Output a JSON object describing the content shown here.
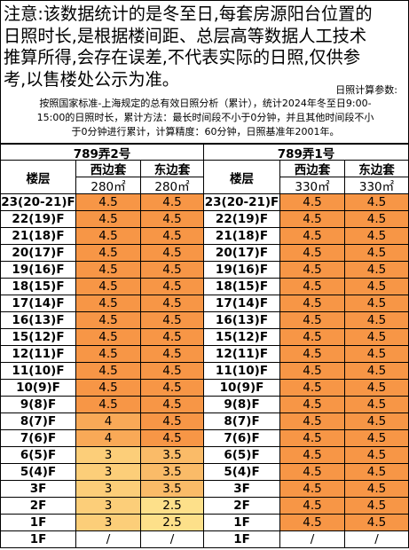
{
  "note": {
    "lines": [
      "注意:该数据统计的是冬至日,每套房源阳台位置的",
      "日照时长,是根据楼间距、总层高等数据人工技术",
      "推算所得,会存在误差,不代表实际的日照,仅供参",
      "考,以售楼处公示为准。"
    ],
    "params_label": "日照计算参数:",
    "params_lines": [
      "按照国家标准-上海规定的总有效日照分析（累计），统计2024年冬至日9:00-",
      "15:00的日照时长，累计方法：最长时间段不小于0分钟，并且其他时间段不小",
      "于0分钟进行累计，计算精度：60分钟，日照基准年2001年。"
    ]
  },
  "color_scale": {
    "low": "#fde08a",
    "high": "#f79646"
  },
  "table": {
    "buildings": [
      {
        "name": "789弄2号",
        "floor_header": "楼层",
        "units": [
          {
            "name": "西边套",
            "area": "280㎡"
          },
          {
            "name": "东边套",
            "area": "280㎡"
          }
        ],
        "rows": [
          {
            "floor": "23(20-21)F",
            "values": [
              4.5,
              4.5
            ]
          },
          {
            "floor": "22(19)F",
            "values": [
              4.5,
              4.5
            ]
          },
          {
            "floor": "21(18)F",
            "values": [
              4.5,
              4.5
            ]
          },
          {
            "floor": "20(17)F",
            "values": [
              4.5,
              4.5
            ]
          },
          {
            "floor": "19(16)F",
            "values": [
              4.5,
              4.5
            ]
          },
          {
            "floor": "18(15)F",
            "values": [
              4.5,
              4.5
            ]
          },
          {
            "floor": "17(14)F",
            "values": [
              4.5,
              4.5
            ]
          },
          {
            "floor": "16(13)F",
            "values": [
              4.5,
              4.5
            ]
          },
          {
            "floor": "15(12)F",
            "values": [
              4.5,
              4.5
            ]
          },
          {
            "floor": "12(11)F",
            "values": [
              4.5,
              4.5
            ]
          },
          {
            "floor": "11(10)F",
            "values": [
              4.5,
              4.5
            ]
          },
          {
            "floor": "10(9)F",
            "values": [
              4.5,
              4.5
            ]
          },
          {
            "floor": "9(8)F",
            "values": [
              4.5,
              4.5
            ]
          },
          {
            "floor": "8(7)F",
            "values": [
              4,
              4.5
            ]
          },
          {
            "floor": "7(6)F",
            "values": [
              4,
              4.5
            ]
          },
          {
            "floor": "6(5)F",
            "values": [
              3,
              3.5
            ]
          },
          {
            "floor": "5(4)F",
            "values": [
              3,
              3.5
            ]
          },
          {
            "floor": "3F",
            "values": [
              3,
              3.5
            ]
          },
          {
            "floor": "2F",
            "values": [
              3,
              2.5
            ]
          },
          {
            "floor": "1F",
            "values": [
              3,
              2.5
            ]
          },
          {
            "floor": "1F",
            "values": [
              "/",
              "/"
            ]
          }
        ]
      },
      {
        "name": "789弄1号",
        "floor_header": "楼层",
        "units": [
          {
            "name": "西边套",
            "area": "330㎡"
          },
          {
            "name": "东边套",
            "area": "330㎡"
          }
        ],
        "rows": [
          {
            "floor": "23(20-21)F",
            "values": [
              4.5,
              4.5
            ]
          },
          {
            "floor": "22(19)F",
            "values": [
              4.5,
              4.5
            ]
          },
          {
            "floor": "21(18)F",
            "values": [
              4.5,
              4.5
            ]
          },
          {
            "floor": "20(17)F",
            "values": [
              4.5,
              4.5
            ]
          },
          {
            "floor": "19(16)F",
            "values": [
              4.5,
              4.5
            ]
          },
          {
            "floor": "18(15)F",
            "values": [
              4.5,
              4.5
            ]
          },
          {
            "floor": "17(14)F",
            "values": [
              4.5,
              4.5
            ]
          },
          {
            "floor": "16(13)F",
            "values": [
              4.5,
              4.5
            ]
          },
          {
            "floor": "15(12)F",
            "values": [
              4.5,
              4.5
            ]
          },
          {
            "floor": "12(11)F",
            "values": [
              4.5,
              4.5
            ]
          },
          {
            "floor": "11(10)F",
            "values": [
              4.5,
              4.5
            ]
          },
          {
            "floor": "10(9)F",
            "values": [
              4.5,
              4.5
            ]
          },
          {
            "floor": "9(8)F",
            "values": [
              4.5,
              4.5
            ]
          },
          {
            "floor": "8(7)F",
            "values": [
              4.5,
              4.5
            ]
          },
          {
            "floor": "7(6)F",
            "values": [
              4.5,
              4.5
            ]
          },
          {
            "floor": "6(5)F",
            "values": [
              4.5,
              4.5
            ]
          },
          {
            "floor": "5(4)F",
            "values": [
              4.5,
              4.5
            ]
          },
          {
            "floor": "3F",
            "values": [
              4.5,
              4.5
            ]
          },
          {
            "floor": "2F",
            "values": [
              4.5,
              4.5
            ]
          },
          {
            "floor": "1F",
            "values": [
              4.5,
              4.5
            ]
          },
          {
            "floor": "1F",
            "values": [
              "/",
              "/"
            ]
          }
        ]
      }
    ]
  }
}
